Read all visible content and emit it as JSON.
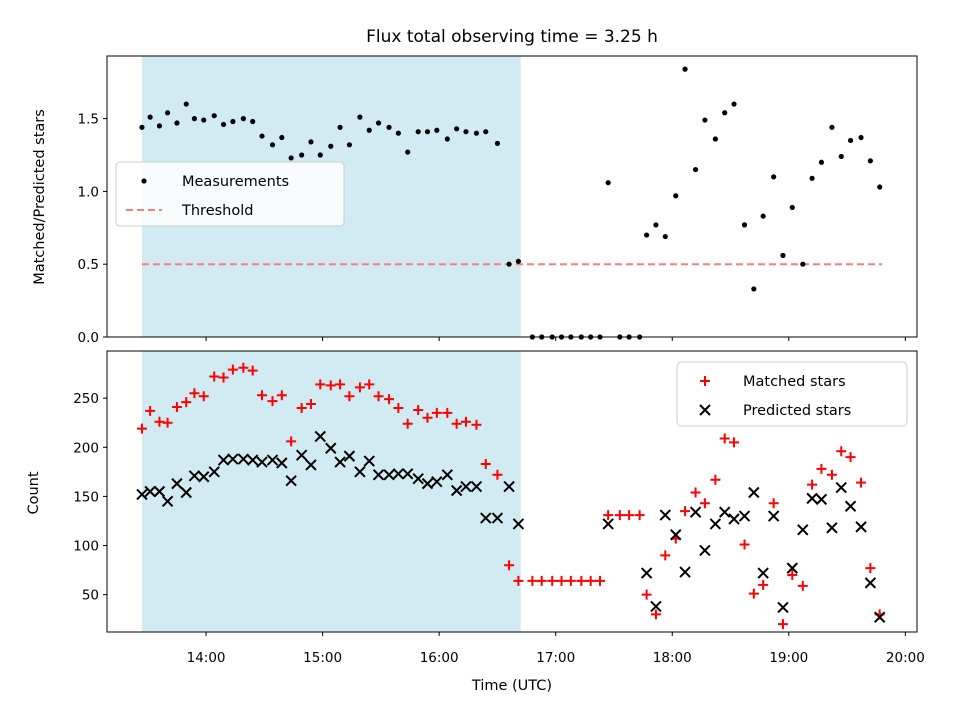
{
  "chart_data": [
    {
      "type": "scatter",
      "title": "Flux total observing time = 3.25 h",
      "xlabel": "",
      "ylabel": "Matched/Predicted stars",
      "ylim": [
        0,
        1.93
      ],
      "yticks": [
        "0.0",
        "0.5",
        "1.0",
        "1.5"
      ],
      "ytick_values": [
        0,
        0.5,
        1.0,
        1.5
      ],
      "xlim": [
        13.15,
        20.1
      ],
      "shaded_region": [
        13.45,
        16.7
      ],
      "shaded_color": "#add8e6",
      "legend": {
        "position": "center-left",
        "entries": [
          "Measurements",
          "Threshold"
        ]
      },
      "threshold": {
        "name": "Threshold",
        "value": 0.5,
        "x_start": 13.45,
        "x_end": 19.8,
        "color": "#f08080",
        "style": "dashed"
      },
      "series": [
        {
          "name": "Measurements",
          "color": "#000000",
          "marker": "dot",
          "points": [
            [
              13.45,
              1.44
            ],
            [
              13.52,
              1.51
            ],
            [
              13.6,
              1.45
            ],
            [
              13.67,
              1.54
            ],
            [
              13.75,
              1.47
            ],
            [
              13.83,
              1.6
            ],
            [
              13.9,
              1.5
            ],
            [
              13.98,
              1.49
            ],
            [
              14.07,
              1.52
            ],
            [
              14.15,
              1.46
            ],
            [
              14.23,
              1.48
            ],
            [
              14.32,
              1.5
            ],
            [
              14.4,
              1.48
            ],
            [
              14.48,
              1.38
            ],
            [
              14.57,
              1.32
            ],
            [
              14.65,
              1.37
            ],
            [
              14.73,
              1.23
            ],
            [
              14.82,
              1.25
            ],
            [
              14.9,
              1.34
            ],
            [
              14.98,
              1.25
            ],
            [
              15.07,
              1.31
            ],
            [
              15.15,
              1.44
            ],
            [
              15.23,
              1.32
            ],
            [
              15.32,
              1.51
            ],
            [
              15.4,
              1.42
            ],
            [
              15.48,
              1.47
            ],
            [
              15.57,
              1.44
            ],
            [
              15.65,
              1.4
            ],
            [
              15.73,
              1.27
            ],
            [
              15.82,
              1.41
            ],
            [
              15.9,
              1.41
            ],
            [
              15.98,
              1.42
            ],
            [
              16.07,
              1.36
            ],
            [
              16.15,
              1.43
            ],
            [
              16.23,
              1.41
            ],
            [
              16.32,
              1.4
            ],
            [
              16.4,
              1.41
            ],
            [
              16.5,
              1.33
            ],
            [
              16.6,
              0.5
            ],
            [
              16.68,
              0.52
            ],
            [
              16.8,
              0.0
            ],
            [
              16.88,
              0.0
            ],
            [
              16.97,
              0.0
            ],
            [
              17.05,
              0.0
            ],
            [
              17.13,
              0.0
            ],
            [
              17.22,
              0.0
            ],
            [
              17.3,
              0.0
            ],
            [
              17.38,
              0.0
            ],
            [
              17.45,
              1.06
            ],
            [
              17.55,
              0.0
            ],
            [
              17.63,
              0.0
            ],
            [
              17.72,
              0.0
            ],
            [
              17.78,
              0.7
            ],
            [
              17.86,
              0.77
            ],
            [
              17.94,
              0.69
            ],
            [
              18.03,
              0.97
            ],
            [
              18.11,
              1.84
            ],
            [
              18.2,
              1.15
            ],
            [
              18.28,
              1.49
            ],
            [
              18.37,
              1.36
            ],
            [
              18.45,
              1.54
            ],
            [
              18.53,
              1.6
            ],
            [
              18.62,
              0.77
            ],
            [
              18.7,
              0.33
            ],
            [
              18.78,
              0.83
            ],
            [
              18.87,
              1.1
            ],
            [
              18.95,
              0.56
            ],
            [
              19.03,
              0.89
            ],
            [
              19.12,
              0.5
            ],
            [
              19.2,
              1.09
            ],
            [
              19.28,
              1.2
            ],
            [
              19.37,
              1.44
            ],
            [
              19.45,
              1.24
            ],
            [
              19.53,
              1.35
            ],
            [
              19.62,
              1.37
            ],
            [
              19.7,
              1.21
            ],
            [
              19.78,
              1.03
            ]
          ]
        }
      ]
    },
    {
      "type": "scatter",
      "title": "",
      "xlabel": "Time (UTC)",
      "ylabel": "Count",
      "ylim": [
        12,
        298
      ],
      "yticks": [
        "50",
        "100",
        "150",
        "200",
        "250"
      ],
      "ytick_values": [
        50,
        100,
        150,
        200,
        250
      ],
      "xlim": [
        13.15,
        20.1
      ],
      "xticks": [
        "14:00",
        "15:00",
        "16:00",
        "17:00",
        "18:00",
        "19:00",
        "20:00"
      ],
      "xtick_values": [
        14,
        15,
        16,
        17,
        18,
        19,
        20
      ],
      "shaded_region": [
        13.45,
        16.7
      ],
      "shaded_color": "#add8e6",
      "legend": {
        "position": "top-right",
        "entries": [
          "Matched stars",
          "Predicted stars"
        ]
      },
      "series": [
        {
          "name": "Matched stars",
          "color": "#ff0000",
          "marker": "plus",
          "points": [
            [
              13.45,
              219
            ],
            [
              13.52,
              237
            ],
            [
              13.6,
              226
            ],
            [
              13.67,
              225
            ],
            [
              13.75,
              241
            ],
            [
              13.83,
              246
            ],
            [
              13.9,
              255
            ],
            [
              13.98,
              252
            ],
            [
              14.07,
              272
            ],
            [
              14.15,
              271
            ],
            [
              14.23,
              279
            ],
            [
              14.32,
              281
            ],
            [
              14.4,
              278
            ],
            [
              14.48,
              253
            ],
            [
              14.57,
              247
            ],
            [
              14.65,
              253
            ],
            [
              14.73,
              206
            ],
            [
              14.82,
              240
            ],
            [
              14.9,
              244
            ],
            [
              14.98,
              264
            ],
            [
              15.07,
              263
            ],
            [
              15.15,
              264
            ],
            [
              15.23,
              252
            ],
            [
              15.32,
              261
            ],
            [
              15.4,
              264
            ],
            [
              15.48,
              252
            ],
            [
              15.57,
              249
            ],
            [
              15.65,
              240
            ],
            [
              15.73,
              224
            ],
            [
              15.82,
              238
            ],
            [
              15.9,
              230
            ],
            [
              15.98,
              235
            ],
            [
              16.07,
              235
            ],
            [
              16.15,
              224
            ],
            [
              16.23,
              226
            ],
            [
              16.32,
              223
            ],
            [
              16.4,
              183
            ],
            [
              16.5,
              172
            ],
            [
              16.6,
              80
            ],
            [
              16.68,
              64
            ],
            [
              16.8,
              64
            ],
            [
              16.88,
              64
            ],
            [
              16.97,
              64
            ],
            [
              17.05,
              64
            ],
            [
              17.13,
              64
            ],
            [
              17.22,
              64
            ],
            [
              17.3,
              64
            ],
            [
              17.38,
              64
            ],
            [
              17.45,
              131
            ],
            [
              17.55,
              131
            ],
            [
              17.63,
              131
            ],
            [
              17.72,
              131
            ],
            [
              17.78,
              50
            ],
            [
              17.86,
              30
            ],
            [
              17.94,
              90
            ],
            [
              18.03,
              107
            ],
            [
              18.11,
              135
            ],
            [
              18.2,
              154
            ],
            [
              18.28,
              143
            ],
            [
              18.37,
              167
            ],
            [
              18.45,
              209
            ],
            [
              18.53,
              205
            ],
            [
              18.62,
              101
            ],
            [
              18.7,
              51
            ],
            [
              18.78,
              60
            ],
            [
              18.87,
              143
            ],
            [
              18.95,
              20
            ],
            [
              19.03,
              70
            ],
            [
              19.12,
              59
            ],
            [
              19.2,
              162
            ],
            [
              19.28,
              178
            ],
            [
              19.37,
              172
            ],
            [
              19.45,
              196
            ],
            [
              19.53,
              190
            ],
            [
              19.62,
              164
            ],
            [
              19.7,
              77
            ],
            [
              19.78,
              30
            ]
          ]
        },
        {
          "name": "Predicted stars",
          "color": "#000000",
          "marker": "x",
          "points": [
            [
              13.45,
              152
            ],
            [
              13.52,
              155
            ],
            [
              13.6,
              155
            ],
            [
              13.67,
              145
            ],
            [
              13.75,
              163
            ],
            [
              13.83,
              154
            ],
            [
              13.9,
              171
            ],
            [
              13.98,
              170
            ],
            [
              14.07,
              175
            ],
            [
              14.15,
              187
            ],
            [
              14.23,
              188
            ],
            [
              14.32,
              188
            ],
            [
              14.4,
              187
            ],
            [
              14.48,
              185
            ],
            [
              14.57,
              187
            ],
            [
              14.65,
              184
            ],
            [
              14.73,
              166
            ],
            [
              14.82,
              192
            ],
            [
              14.9,
              182
            ],
            [
              14.98,
              211
            ],
            [
              15.07,
              199
            ],
            [
              15.15,
              185
            ],
            [
              15.23,
              191
            ],
            [
              15.32,
              175
            ],
            [
              15.4,
              186
            ],
            [
              15.48,
              172
            ],
            [
              15.57,
              172
            ],
            [
              15.65,
              173
            ],
            [
              15.73,
              173
            ],
            [
              15.82,
              168
            ],
            [
              15.9,
              163
            ],
            [
              15.98,
              165
            ],
            [
              16.07,
              172
            ],
            [
              16.15,
              156
            ],
            [
              16.23,
              160
            ],
            [
              16.32,
              160
            ],
            [
              16.4,
              128
            ],
            [
              16.5,
              128
            ],
            [
              16.6,
              160
            ],
            [
              16.68,
              122
            ],
            [
              17.45,
              122
            ],
            [
              17.78,
              72
            ],
            [
              17.86,
              38
            ],
            [
              17.94,
              131
            ],
            [
              18.03,
              111
            ],
            [
              18.11,
              73
            ],
            [
              18.2,
              134
            ],
            [
              18.28,
              95
            ],
            [
              18.37,
              122
            ],
            [
              18.45,
              134
            ],
            [
              18.53,
              127
            ],
            [
              18.62,
              130
            ],
            [
              18.7,
              154
            ],
            [
              18.78,
              72
            ],
            [
              18.87,
              130
            ],
            [
              18.95,
              37
            ],
            [
              19.03,
              77
            ],
            [
              19.12,
              116
            ],
            [
              19.2,
              148
            ],
            [
              19.28,
              147
            ],
            [
              19.37,
              118
            ],
            [
              19.45,
              159
            ],
            [
              19.53,
              140
            ],
            [
              19.62,
              119
            ],
            [
              19.7,
              62
            ],
            [
              19.78,
              27
            ]
          ]
        }
      ]
    }
  ]
}
